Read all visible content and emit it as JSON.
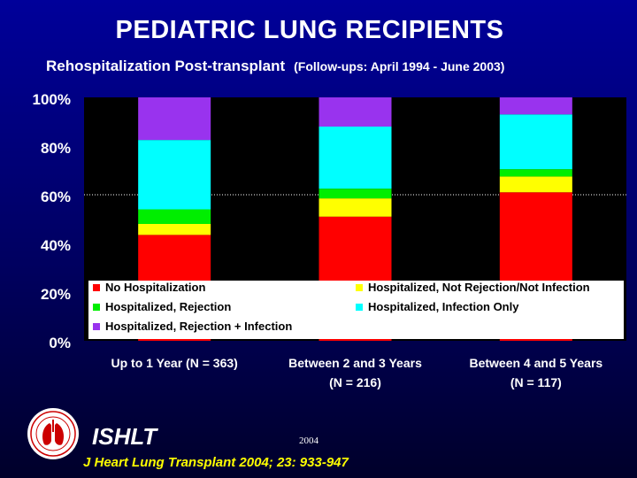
{
  "title": "PEDIATRIC LUNG RECIPIENTS",
  "subtitle": "Rehospitalization Post-transplant",
  "subtitle_note": "(Follow-ups: April 1994 - June 2003)",
  "chart_data": {
    "type": "bar",
    "stacked": true,
    "categories": [
      [
        "Up to 1 Year (N = 363)"
      ],
      [
        "Between 2 and 3 Years",
        "(N = 216)"
      ],
      [
        "Between 4 and 5 Years",
        "(N = 117)"
      ]
    ],
    "series": [
      {
        "name": "No Hospitalization",
        "color": "#ff0000",
        "values": [
          43.5,
          51,
          61
        ]
      },
      {
        "name": "Hospitalized, Not Rejection/Not Infection",
        "color": "#ffff00",
        "values": [
          4.5,
          7.5,
          6.5
        ]
      },
      {
        "name": "Hospitalized, Rejection",
        "color": "#00ee00",
        "values": [
          6,
          4,
          3
        ]
      },
      {
        "name": "Hospitalized, Infection Only",
        "color": "#00ffff",
        "values": [
          28.5,
          25.5,
          22.5
        ]
      },
      {
        "name": "Hospitalized, Rejection + Infection",
        "color": "#9933ee",
        "values": [
          17.5,
          12,
          7
        ]
      }
    ],
    "legend_order": [
      0,
      1,
      2,
      3,
      4
    ],
    "ylim": [
      0,
      100
    ],
    "yticks": [
      "0%",
      "20%",
      "40%",
      "60%",
      "80%",
      "100%"
    ],
    "reference_line": 60,
    "legend_position": "inside-bottom",
    "plot_background": "#000000",
    "legend_background": "#ffffff"
  },
  "footer": {
    "logo_label": "ISHLT",
    "year": "2004",
    "citation": "J Heart Lung Transplant 2004; 23: 933-947"
  }
}
